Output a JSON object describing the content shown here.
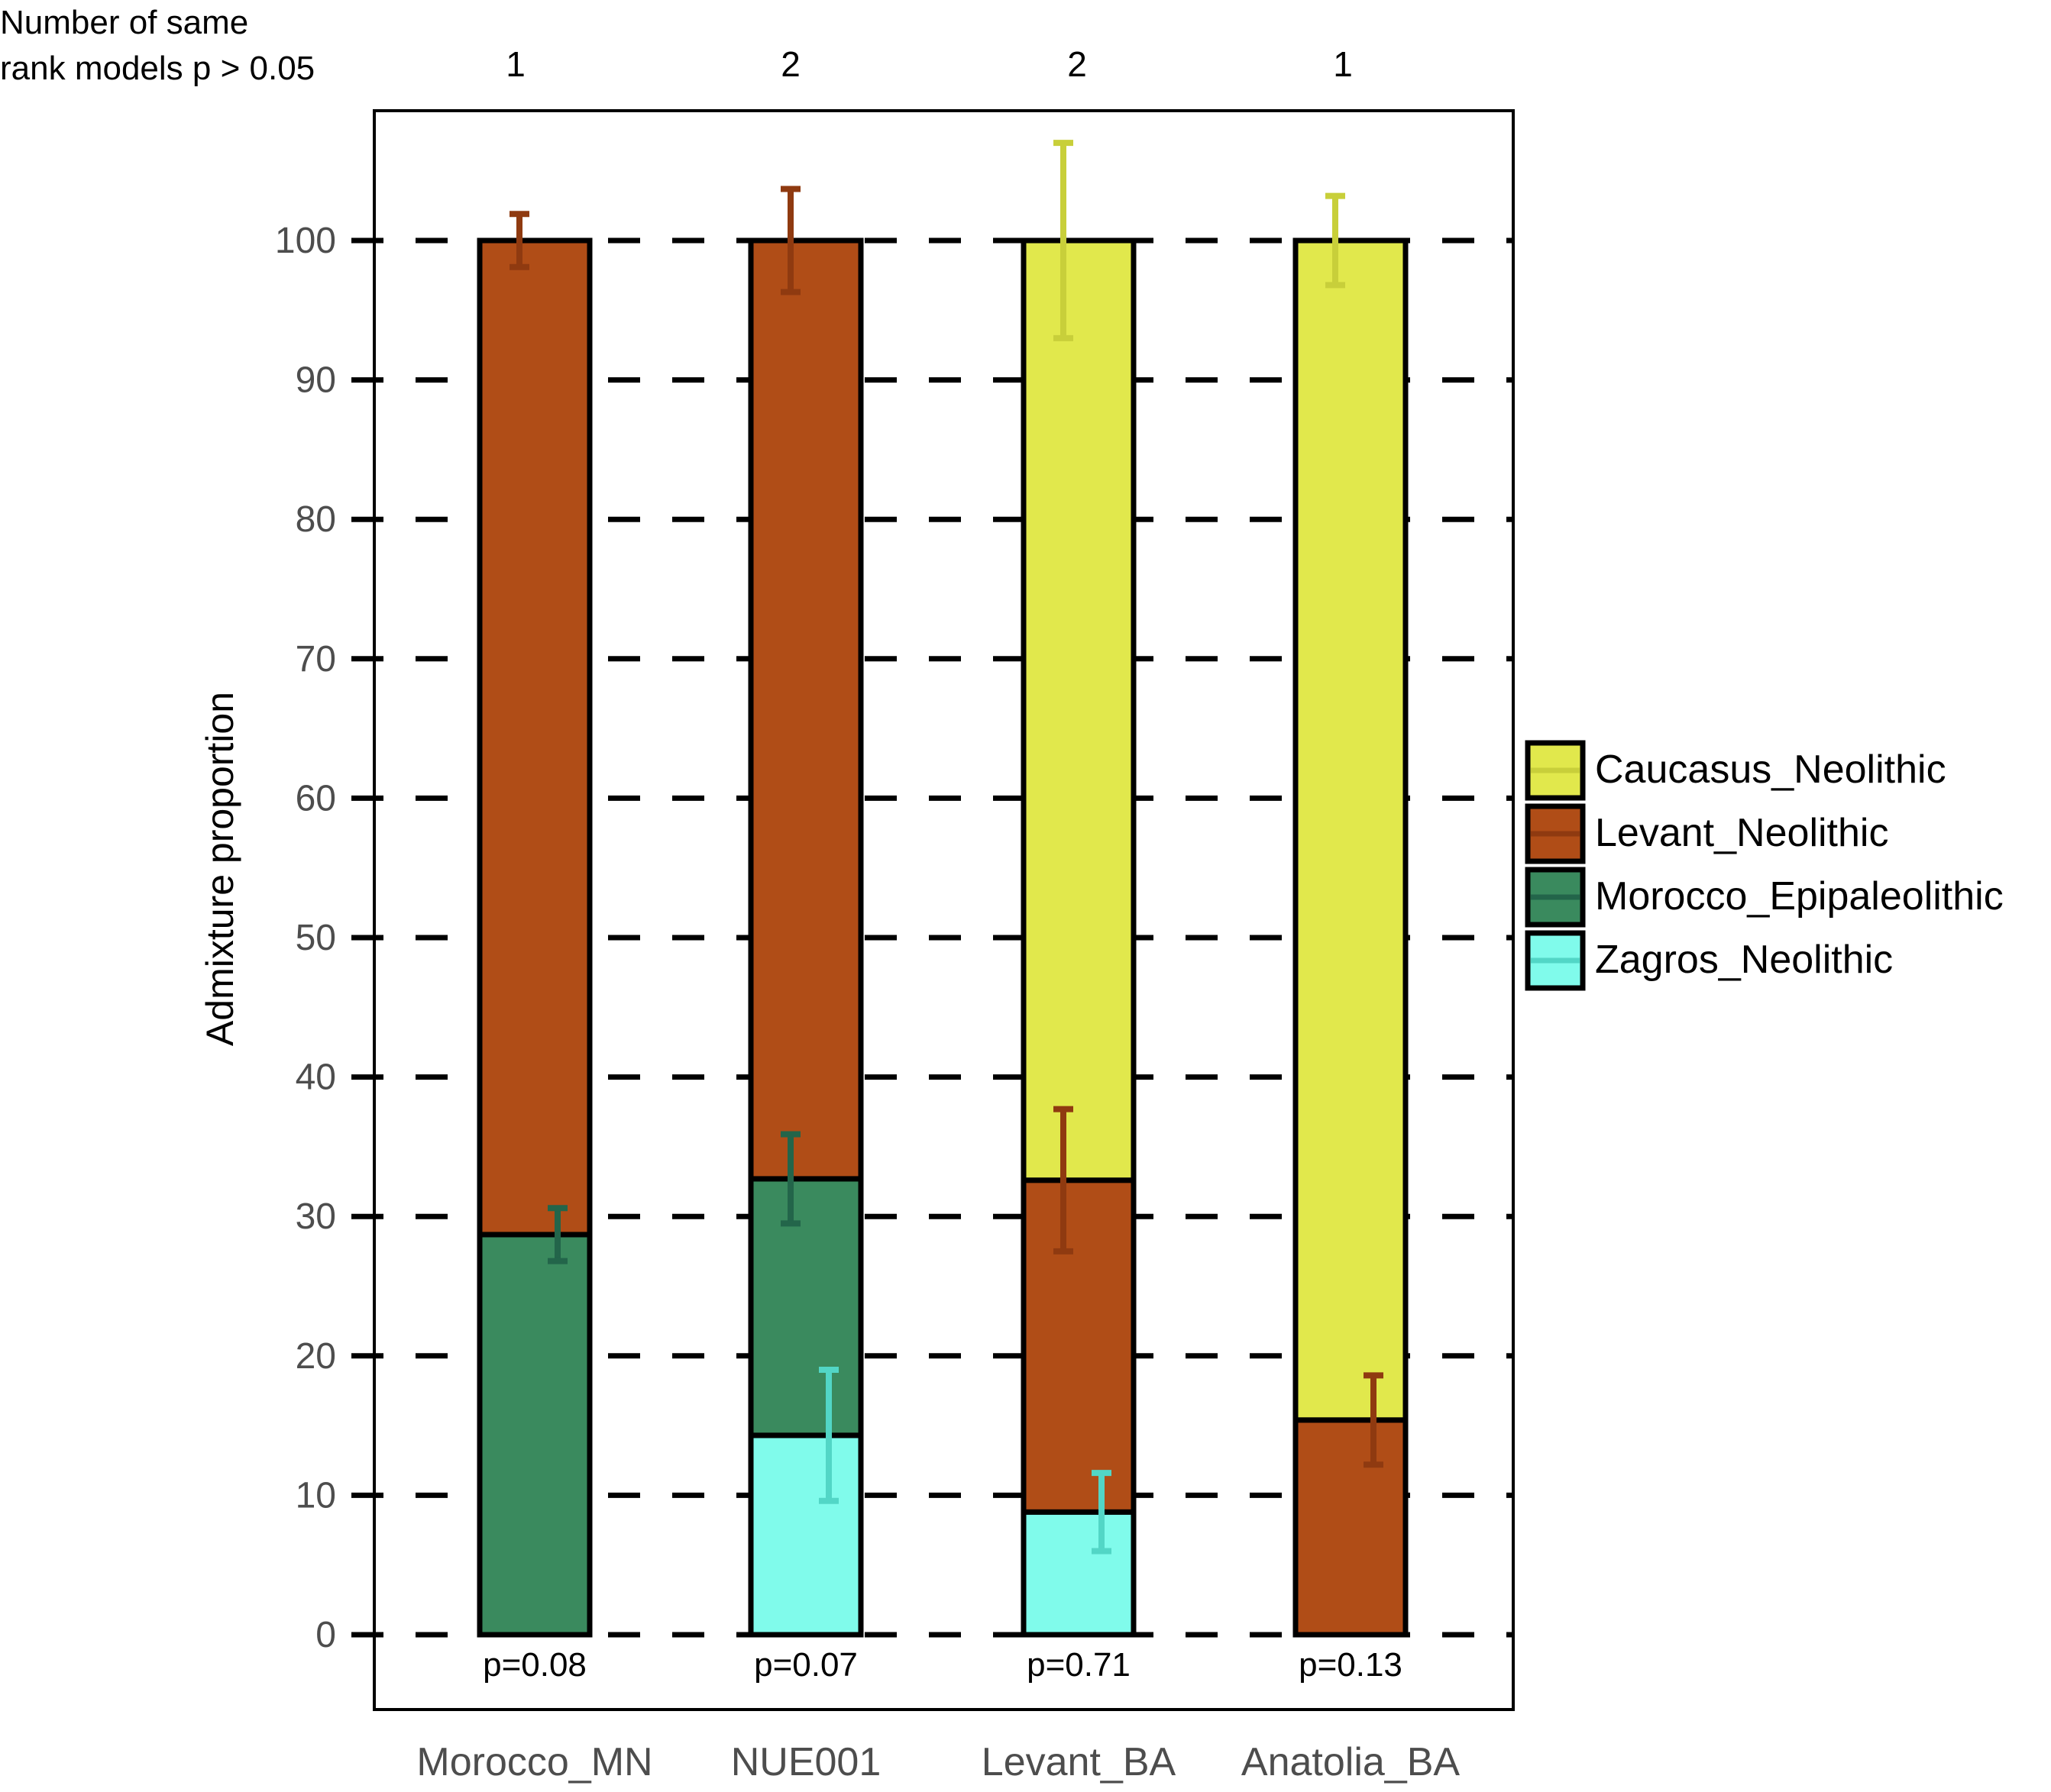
{
  "models_header": {
    "line1": "Number of same",
    "line2": "rank models p > 0.05"
  },
  "chart_data": {
    "type": "bar",
    "stacked": true,
    "ylabel": "Admixture proportion",
    "xlabel": "",
    "ylim": [
      0,
      100
    ],
    "yticks": [
      0,
      10,
      20,
      30,
      40,
      50,
      60,
      70,
      80,
      90,
      100
    ],
    "grid": "dashed horizontal at every 10",
    "legend_position": "right",
    "categories": [
      "Morocco_MN",
      "NUE001",
      "Levant_BA",
      "Anatolia_BA"
    ],
    "model_counts": [
      "1",
      "2",
      "2",
      "1"
    ],
    "p_values": [
      "p=0.08",
      "p=0.07",
      "p=0.71",
      "p=0.13"
    ],
    "colors": {
      "Caucasus_Neolithic": "#e1e84c",
      "Levant_Neolithic": "#b04d17",
      "Morocco_Epipaleolithic": "#3a8a5e",
      "Zagros_Neolithic": "#80fbeb"
    },
    "error_colors": {
      "Caucasus_Neolithic": "#c8cf3a",
      "Levant_Neolithic": "#8f3a10",
      "Morocco_Epipaleolithic": "#23654a",
      "Zagros_Neolithic": "#52d6c6"
    },
    "series": [
      {
        "name": "Zagros_Neolithic",
        "values": [
          0,
          14.3,
          8.8,
          0
        ],
        "errors": [
          0,
          4.7,
          2.8,
          0
        ]
      },
      {
        "name": "Morocco_Epipaleolithic",
        "values": [
          28.7,
          18.4,
          0,
          0
        ],
        "errors": [
          1.9,
          3.2,
          0,
          0
        ]
      },
      {
        "name": "Levant_Neolithic",
        "values": [
          71.3,
          67.3,
          23.8,
          15.4
        ],
        "errors": [
          1.9,
          3.7,
          5.1,
          3.2
        ]
      },
      {
        "name": "Caucasus_Neolithic",
        "values": [
          0,
          0,
          67.4,
          84.6
        ],
        "errors": [
          0,
          0,
          7.0,
          3.2
        ]
      }
    ],
    "legend": [
      "Caucasus_Neolithic",
      "Levant_Neolithic",
      "Morocco_Epipaleolithic",
      "Zagros_Neolithic"
    ]
  }
}
